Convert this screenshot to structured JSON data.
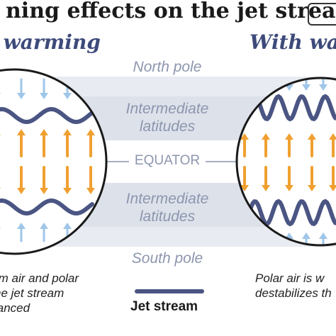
{
  "title": "ning effects on the jet stream",
  "headings": {
    "left": "t warming",
    "right": "With wa"
  },
  "zones": {
    "north": "North pole",
    "intermediate_top": [
      "Intermediate",
      "latitudes"
    ],
    "equator": "EQUATOR",
    "intermediate_bottom": [
      "Intermediate",
      "latitudes"
    ],
    "south": "South pole"
  },
  "captions": {
    "left": [
      "rm air and polar",
      "he jet stream",
      "lanced"
    ],
    "right": [
      "Polar air is w",
      "destabilizes th"
    ]
  },
  "legend": {
    "label": "Jet stream"
  },
  "colors": {
    "band": "#e8ebf1",
    "jet_stream": "#4a5583",
    "warm_arrow": "#f0a030",
    "polar_arrow": "#9fc6e8",
    "circle_stroke": "#1a1a1a",
    "label": "#8c96ae"
  }
}
